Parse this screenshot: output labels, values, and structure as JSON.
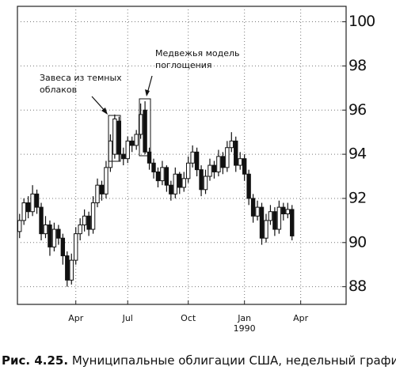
{
  "chart_data": {
    "type": "candlestick",
    "caption_label": "Рис. 4.25.",
    "caption_text": "Муниципальные облигации США, недельный график",
    "annotations": [
      {
        "text": [
          "Завеса из темных",
          "облаков"
        ]
      },
      {
        "text": [
          "Медвежья модель",
          "поглощения"
        ]
      }
    ],
    "x": [
      0,
      1,
      2,
      3,
      4,
      5,
      6,
      7,
      8,
      9,
      10,
      11,
      12,
      13,
      14,
      15,
      16,
      17,
      18,
      19,
      20,
      21,
      22,
      23,
      24,
      25,
      26,
      27,
      28,
      29,
      30,
      31,
      32,
      33,
      34,
      35,
      36,
      37,
      38,
      39,
      40,
      41,
      42,
      43,
      44,
      45,
      46,
      47,
      48,
      49,
      50,
      51,
      52,
      53,
      54,
      55,
      56,
      57,
      58,
      59,
      60,
      61,
      62,
      63
    ],
    "open": [
      90.5,
      91.0,
      91.8,
      91.4,
      92.2,
      91.6,
      90.4,
      90.8,
      89.8,
      90.6,
      90.2,
      89.4,
      88.3,
      89.2,
      90.4,
      90.8,
      91.2,
      90.6,
      91.8,
      92.6,
      92.2,
      93.4,
      94.0,
      95.5,
      94.0,
      93.8,
      94.6,
      94.4,
      94.9,
      96.0,
      94.1,
      93.6,
      93.2,
      92.8,
      93.4,
      92.6,
      92.2,
      93.1,
      92.5,
      92.9,
      93.6,
      94.1,
      93.3,
      92.4,
      93.0,
      93.5,
      93.2,
      93.9,
      93.4,
      94.3,
      94.6,
      93.5,
      93.8,
      93.1,
      92.0,
      91.2,
      91.6,
      90.2,
      91.0,
      91.4,
      90.6,
      91.6,
      91.3,
      91.5
    ],
    "high": [
      91.3,
      92.0,
      92.1,
      92.6,
      92.4,
      91.8,
      91.2,
      91.0,
      90.9,
      90.8,
      90.4,
      89.6,
      89.5,
      90.7,
      91.1,
      91.5,
      91.4,
      92.1,
      92.9,
      92.8,
      93.7,
      94.9,
      95.8,
      95.7,
      94.3,
      94.8,
      94.8,
      95.1,
      96.3,
      96.4,
      94.3,
      93.8,
      93.4,
      93.7,
      93.5,
      92.8,
      93.4,
      93.2,
      93.2,
      93.9,
      94.4,
      94.3,
      93.5,
      93.3,
      93.8,
      93.7,
      94.2,
      94.1,
      94.6,
      95.0,
      94.8,
      94.1,
      94.0,
      93.3,
      92.2,
      91.9,
      91.8,
      91.3,
      91.7,
      91.6,
      91.9,
      91.8,
      91.8,
      91.7
    ],
    "low": [
      90.2,
      90.8,
      91.1,
      91.2,
      91.3,
      90.1,
      90.2,
      89.4,
      89.6,
      89.9,
      89.0,
      88.0,
      88.1,
      89.0,
      90.1,
      90.5,
      90.3,
      90.4,
      91.6,
      91.9,
      92.0,
      93.2,
      93.8,
      93.7,
      93.5,
      93.6,
      94.1,
      94.2,
      94.7,
      94.0,
      93.3,
      92.9,
      92.5,
      92.6,
      92.3,
      91.9,
      92.0,
      92.2,
      92.3,
      92.7,
      93.4,
      93.0,
      92.1,
      92.2,
      92.8,
      92.9,
      93.0,
      93.1,
      93.2,
      94.1,
      93.2,
      93.3,
      92.8,
      91.7,
      90.9,
      91.0,
      89.9,
      90.0,
      90.8,
      90.3,
      90.4,
      91.0,
      91.1,
      90.1
    ],
    "close": [
      91.0,
      91.8,
      91.4,
      92.2,
      91.6,
      90.4,
      90.8,
      89.8,
      90.6,
      90.2,
      89.4,
      88.3,
      89.2,
      90.4,
      90.8,
      91.2,
      90.6,
      91.8,
      92.6,
      92.2,
      93.4,
      94.6,
      95.6,
      94.0,
      93.8,
      94.6,
      94.4,
      94.9,
      95.8,
      94.1,
      93.6,
      93.2,
      92.8,
      93.4,
      92.6,
      92.2,
      93.1,
      92.5,
      92.9,
      93.6,
      94.1,
      93.3,
      92.4,
      93.0,
      93.5,
      93.2,
      93.9,
      93.4,
      94.3,
      94.6,
      93.5,
      93.8,
      93.1,
      92.0,
      91.2,
      91.6,
      90.2,
      91.0,
      91.4,
      90.6,
      91.6,
      91.3,
      91.5,
      90.3
    ],
    "up_color": "#ffffff",
    "down_color": "#111111",
    "xlim": [
      -0.5,
      75.5
    ],
    "xticks": [
      {
        "value": 13,
        "label": "Apr"
      },
      {
        "value": 25,
        "label": "Jul"
      },
      {
        "value": 39,
        "label": "Oct"
      },
      {
        "value": 52,
        "label": "Jan"
      },
      {
        "value": 65,
        "label": "Apr"
      }
    ],
    "year_label": {
      "tick": 3,
      "text": "1990"
    },
    "ylim": [
      87.2,
      100.7
    ],
    "yticks": [
      88,
      90,
      92,
      94,
      96,
      98,
      100
    ],
    "grid": true
  }
}
